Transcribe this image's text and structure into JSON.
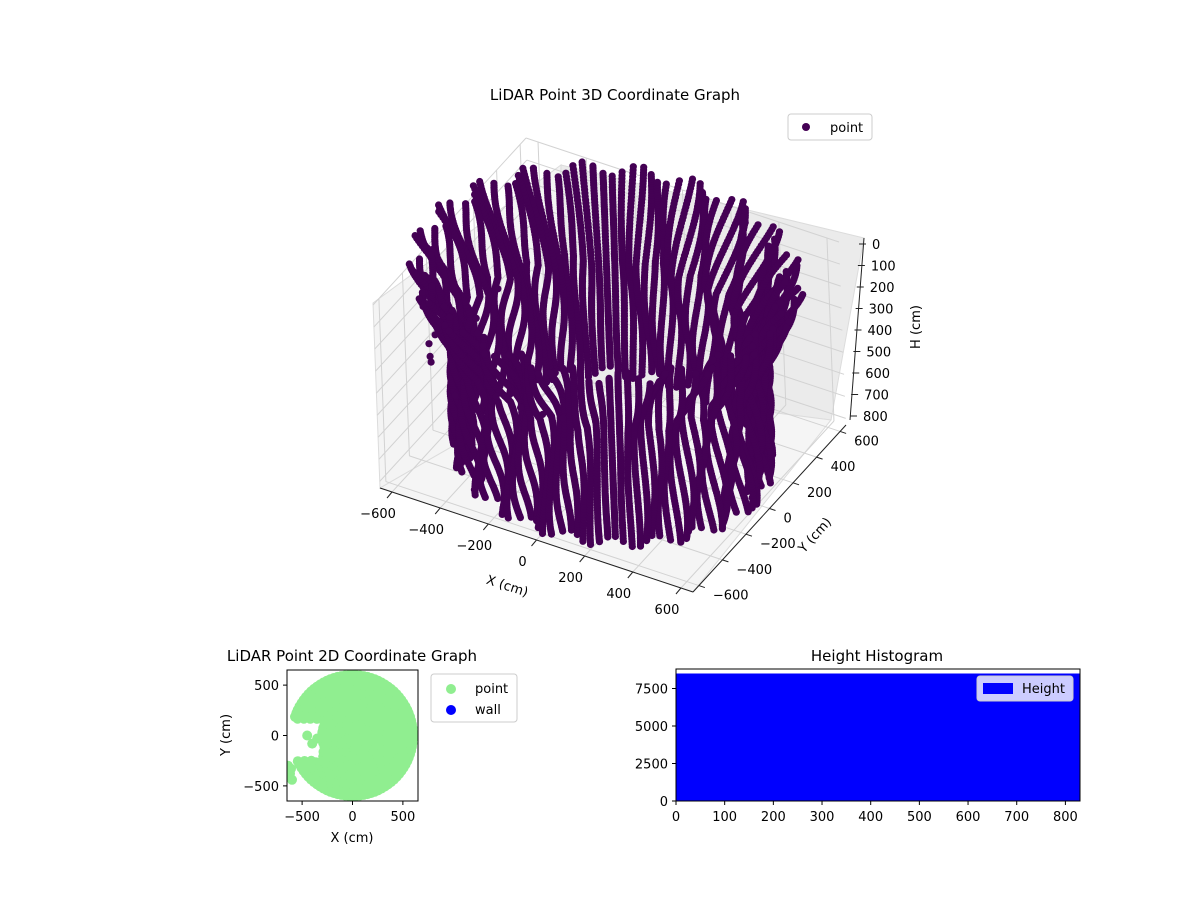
{
  "chart_data": [
    {
      "type": "scatter",
      "projection": "3d",
      "title": "LiDAR Point 3D Coordinate Graph",
      "xlabel": "X (cm)",
      "ylabel": "Y (cm)",
      "zlabel": "H (cm)",
      "xlim": [
        -650,
        650
      ],
      "ylim": [
        -650,
        650
      ],
      "zlim": [
        0,
        830
      ],
      "z_inverted": true,
      "xticks": [
        "−600",
        "−400",
        "−200",
        "0",
        "200",
        "400",
        "600"
      ],
      "yticks": [
        "−600",
        "−400",
        "−200",
        "0",
        "200",
        "400",
        "600"
      ],
      "zticks": [
        "0",
        "100",
        "200",
        "300",
        "400",
        "500",
        "600",
        "700",
        "800"
      ],
      "legend": [
        "point"
      ],
      "legend_position": "upper-right",
      "grid": true,
      "color": "#440154",
      "series": [
        {
          "name": "point",
          "shape": "cylindrical scan",
          "radius": 600,
          "h_range": [
            0,
            830
          ],
          "outliers": [
            [
              -620,
              -300,
              200
            ],
            [
              -600,
              -250,
              350
            ],
            [
              -580,
              -330,
              420
            ],
            [
              -640,
              -220,
              480
            ],
            [
              -500,
              -300,
              560
            ],
            [
              -560,
              -380,
              300
            ],
            [
              -420,
              -120,
              640
            ],
            [
              -350,
              -60,
              700
            ],
            [
              -300,
              20,
              760
            ],
            [
              -250,
              90,
              800
            ],
            [
              -450,
              -200,
              250
            ],
            [
              -380,
              -150,
              120
            ]
          ]
        }
      ]
    },
    {
      "type": "scatter",
      "title": "LiDAR Point 2D Coordinate Graph",
      "xlabel": "X (cm)",
      "ylabel": "Y (cm)",
      "xlim": [
        -650,
        650
      ],
      "ylim": [
        -650,
        650
      ],
      "xticks": [
        "−500",
        "0",
        "500"
      ],
      "yticks": [
        "−500",
        "0",
        "500"
      ],
      "legend": [
        "point",
        "wall"
      ],
      "legend_position": "outside-right",
      "colors": {
        "point": "#90ee90",
        "wall": "#0000ff"
      },
      "series": [
        {
          "name": "point",
          "shape": "disc",
          "center": [
            0,
            0
          ],
          "radius": 600,
          "gap_points": [
            [
              -450,
              0
            ],
            [
              -400,
              -80
            ],
            [
              -350,
              -30
            ],
            [
              -300,
              30
            ],
            [
              -250,
              -80
            ]
          ],
          "left_cluster": [
            [
              -640,
              -300
            ],
            [
              -620,
              -380
            ],
            [
              -600,
              -440
            ],
            [
              -650,
              -350
            ],
            [
              -610,
              -330
            ]
          ]
        },
        {
          "name": "wall",
          "values": []
        }
      ]
    },
    {
      "type": "bar",
      "title": "Height Histogram",
      "xlabel": "",
      "ylabel": "",
      "xlim": [
        0,
        830
      ],
      "ylim": [
        0,
        8800
      ],
      "xticks": [
        "0",
        "100",
        "200",
        "300",
        "400",
        "500",
        "600",
        "700",
        "800"
      ],
      "yticks": [
        "0",
        "2500",
        "5000",
        "7500"
      ],
      "legend": [
        "Height"
      ],
      "legend_position": "upper-right",
      "color": "#0000ff",
      "series": [
        {
          "name": "Height",
          "bin_range": [
            0,
            830
          ],
          "count": 8500
        }
      ]
    }
  ]
}
